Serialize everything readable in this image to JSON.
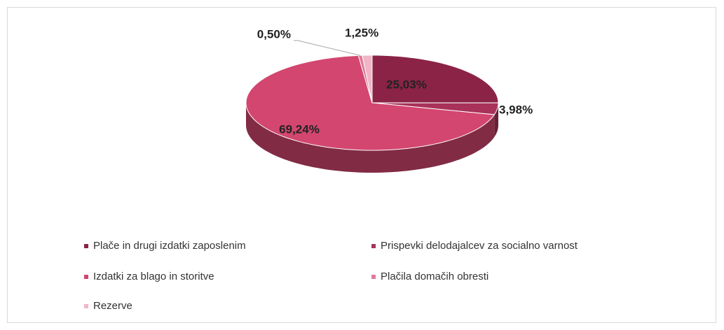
{
  "chart_data": {
    "type": "pie",
    "categories": [
      "Plače in drugi izdatki zaposlenim",
      "Prispevki delodajalcev za socialno varnost",
      "Izdatki za blago in storitve",
      "Plačila domačih obresti",
      "Rezerve"
    ],
    "values": [
      25.03,
      3.98,
      69.24,
      0.5,
      1.25
    ],
    "value_labels": [
      "25,03%",
      "3,98%",
      "69,24%",
      "0,50%",
      "1,25%"
    ],
    "colors": [
      "#8b2346",
      "#a8325a",
      "#d2466f",
      "#e07a98",
      "#efb6c6"
    ],
    "legend": "bottom"
  }
}
